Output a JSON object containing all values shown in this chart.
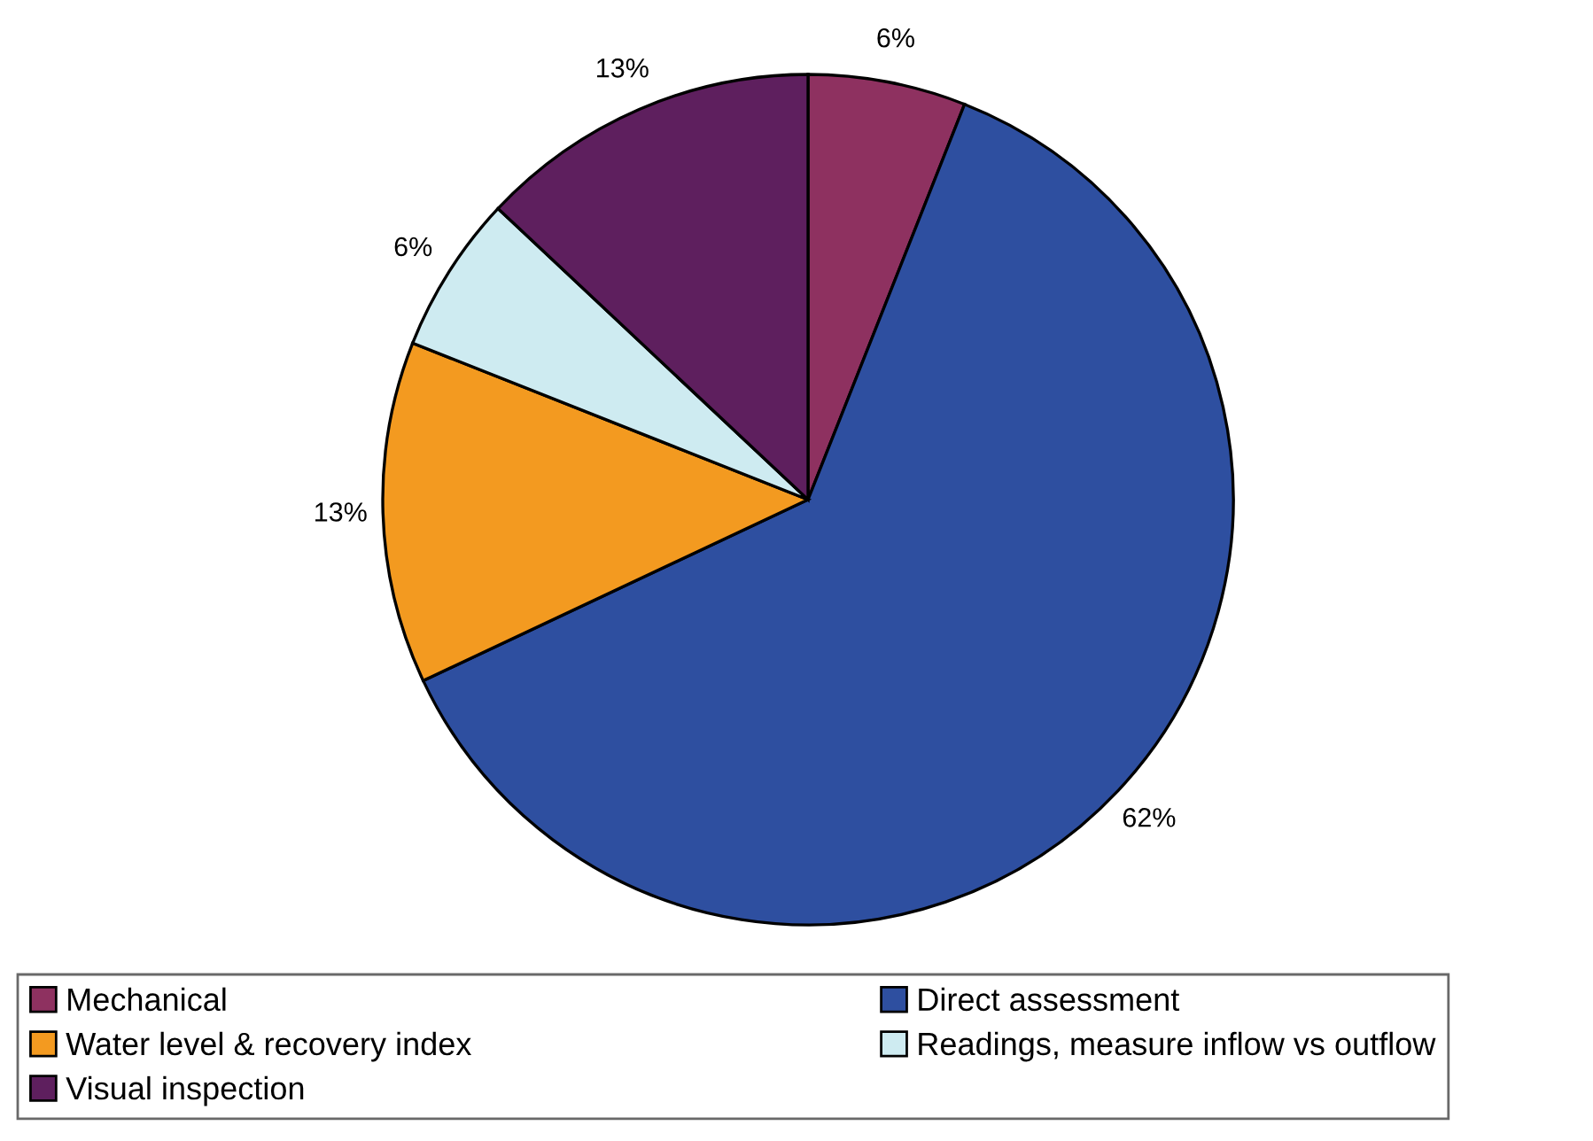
{
  "chart_data": {
    "type": "pie",
    "categories": [
      "Mechanical",
      "Direct assessment",
      "Water level & recovery index",
      "Readings, measure inflow vs outflow",
      "Visual inspection"
    ],
    "values": [
      6,
      62,
      13,
      6,
      13
    ],
    "colors": [
      "#8e3160",
      "#2e4fa0",
      "#f39a20",
      "#ceebf1",
      "#5e1f5e"
    ],
    "value_labels": [
      "6%",
      "62%",
      "13%",
      "6%",
      "13%"
    ],
    "legend": "bottom"
  }
}
